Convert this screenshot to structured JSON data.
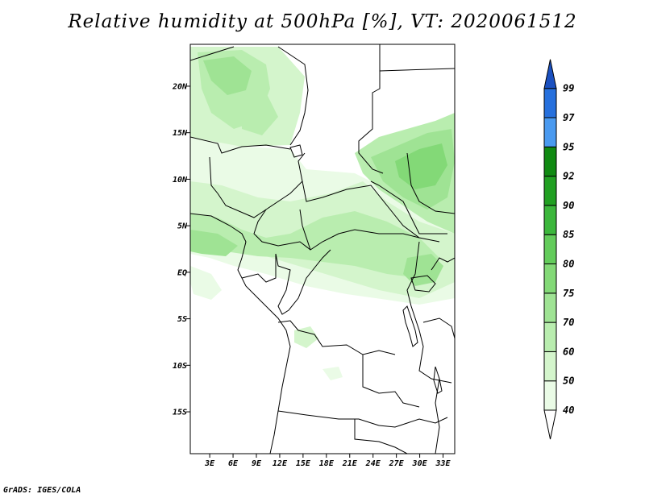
{
  "title": "Relative humidity at 500hPa [%], VT: 2020061512",
  "footer": "GrADS: IGES/COLA",
  "map": {
    "lat_labels": [
      "20N",
      "15N",
      "10N",
      "5N",
      "EQ",
      "5S",
      "10S",
      "15S"
    ],
    "lon_labels": [
      "3E",
      "6E",
      "9E",
      "12E",
      "15E",
      "18E",
      "21E",
      "24E",
      "27E",
      "30E",
      "33E"
    ],
    "lat_range": [
      -19.5,
      24.5
    ],
    "lon_range": [
      0.5,
      34.5
    ],
    "field": "Relative humidity at 500hPa"
  },
  "colorbar": {
    "labels": [
      "40",
      "50",
      "60",
      "70",
      "75",
      "80",
      "85",
      "90",
      "92",
      "95",
      "97",
      "99"
    ],
    "colors": [
      "#ffffff",
      "#eafbe6",
      "#d4f5cc",
      "#b9edaf",
      "#9fe394",
      "#83d977",
      "#63cc5b",
      "#3cb73c",
      "#21a022",
      "#108a12",
      "#4a9af0",
      "#2670dd",
      "#1a50c0"
    ]
  },
  "chart_data": {
    "type": "heatmap",
    "title": "Relative humidity at 500hPa [%], VT: 2020061512",
    "x_ticks": [
      "3E",
      "6E",
      "9E",
      "12E",
      "15E",
      "18E",
      "21E",
      "24E",
      "27E",
      "30E",
      "33E"
    ],
    "y_ticks": [
      "20N",
      "15N",
      "10N",
      "5N",
      "EQ",
      "5S",
      "10S",
      "15S"
    ],
    "color_levels": [
      40,
      50,
      60,
      70,
      75,
      80,
      85,
      90,
      92,
      95,
      97,
      99
    ]
  }
}
